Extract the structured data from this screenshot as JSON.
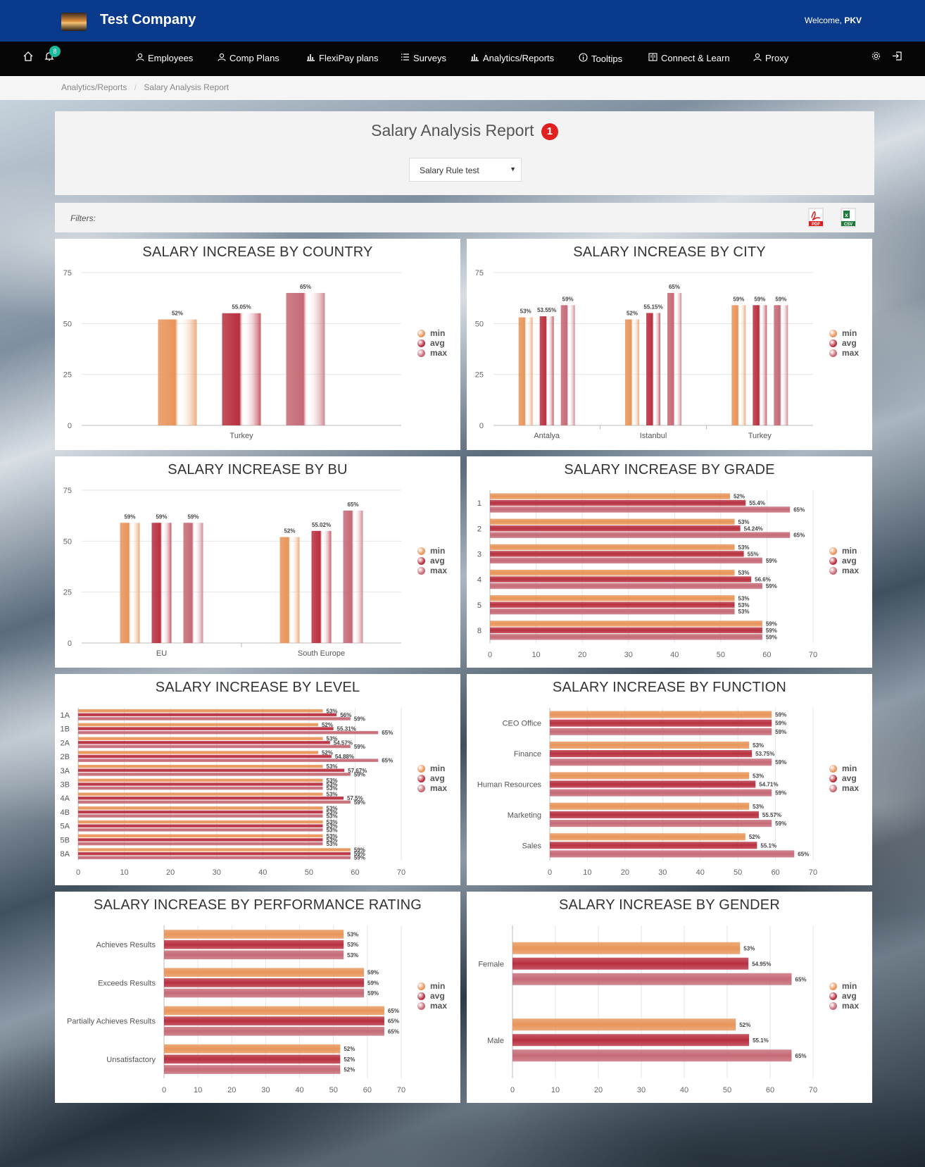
{
  "header": {
    "company": "Test Company",
    "welcome_prefix": "Welcome, ",
    "welcome_user": "PKV"
  },
  "nav": {
    "notifications_count": "8",
    "items": [
      {
        "label": "Employees",
        "icon": "person-icon"
      },
      {
        "label": "Comp Plans",
        "icon": "person-icon"
      },
      {
        "label": "FlexiPay plans",
        "icon": "bar-chart-icon"
      },
      {
        "label": "Surveys",
        "icon": "list-icon"
      },
      {
        "label": "Analytics/Reports",
        "icon": "bar-chart-icon"
      },
      {
        "label": "Tooltips",
        "icon": "info-icon"
      },
      {
        "label": "Connect & Learn",
        "icon": "book-icon"
      },
      {
        "label": "Proxy",
        "icon": "person-icon"
      }
    ]
  },
  "breadcrumb": {
    "items": [
      "Analytics/Reports",
      "Salary Analysis Report"
    ],
    "separator": "/"
  },
  "report": {
    "title": "Salary Analysis Report",
    "badge": "1",
    "selected_rule": "Salary Rule test",
    "filters_label": "Filters:",
    "pdf_label": "PDF",
    "csv_label": "CSV"
  },
  "colors": {
    "min": "#e8955a",
    "avg": "#b83040",
    "max": "#c56a76",
    "topbar": "#0a3a8c",
    "navbar": "#050505"
  },
  "legend": [
    "min",
    "avg",
    "max"
  ],
  "chart_data": [
    {
      "id": "country",
      "type": "bar",
      "title": "SALARY INCREASE BY COUNTRY",
      "orientation": "vertical",
      "categories": [
        "Turkey"
      ],
      "ylim": [
        0,
        75
      ],
      "yticks": [
        0,
        25,
        50,
        75
      ],
      "series": [
        {
          "name": "min",
          "values": [
            52
          ],
          "labels": [
            "52%"
          ]
        },
        {
          "name": "avg",
          "values": [
            55.05
          ],
          "labels": [
            "55.05%"
          ]
        },
        {
          "name": "max",
          "values": [
            65
          ],
          "labels": [
            "65%"
          ]
        }
      ]
    },
    {
      "id": "city",
      "type": "bar",
      "title": "SALARY INCREASE BY CITY",
      "orientation": "vertical",
      "categories": [
        "Antalya",
        "Istanbul",
        "Turkey"
      ],
      "ylim": [
        0,
        75
      ],
      "yticks": [
        0,
        25,
        50,
        75
      ],
      "series": [
        {
          "name": "min",
          "values": [
            53,
            52,
            59
          ],
          "labels": [
            "53%",
            "52%",
            "59%"
          ]
        },
        {
          "name": "avg",
          "values": [
            53.55,
            55.15,
            59
          ],
          "labels": [
            "53.55%",
            "55.15%",
            "59%"
          ]
        },
        {
          "name": "max",
          "values": [
            59,
            65,
            59
          ],
          "labels": [
            "59%",
            "65%",
            "59%"
          ]
        }
      ]
    },
    {
      "id": "bu",
      "type": "bar",
      "title": "SALARY INCREASE BY BU",
      "orientation": "vertical",
      "categories": [
        "EU",
        "South Europe"
      ],
      "ylim": [
        0,
        75
      ],
      "yticks": [
        0,
        25,
        50,
        75
      ],
      "series": [
        {
          "name": "min",
          "values": [
            59,
            52
          ],
          "labels": [
            "59%",
            "52%"
          ]
        },
        {
          "name": "avg",
          "values": [
            59,
            55.02
          ],
          "labels": [
            "59%",
            "55.02%"
          ]
        },
        {
          "name": "max",
          "values": [
            59,
            65
          ],
          "labels": [
            "59%",
            "65%"
          ]
        }
      ]
    },
    {
      "id": "grade",
      "type": "bar",
      "title": "SALARY INCREASE BY GRADE",
      "orientation": "horizontal",
      "categories": [
        "1",
        "2",
        "3",
        "4",
        "5",
        "8"
      ],
      "xlim": [
        0,
        70
      ],
      "xticks": [
        0,
        10,
        20,
        30,
        40,
        50,
        60,
        70
      ],
      "series": [
        {
          "name": "min",
          "values": [
            52,
            53,
            53,
            53,
            53,
            59
          ],
          "labels": [
            "52%",
            "53%",
            "53%",
            "53%",
            "53%",
            "59%"
          ]
        },
        {
          "name": "avg",
          "values": [
            55.4,
            54.24,
            55,
            56.6,
            53,
            59
          ],
          "labels": [
            "55.4%",
            "54.24%",
            "55%",
            "56.6%",
            "53%",
            "59%"
          ]
        },
        {
          "name": "max",
          "values": [
            65,
            65,
            59,
            59,
            53,
            59
          ],
          "labels": [
            "65%",
            "65%",
            "59%",
            "59%",
            "53%",
            "59%"
          ]
        }
      ]
    },
    {
      "id": "level",
      "type": "bar",
      "title": "SALARY INCREASE BY LEVEL",
      "orientation": "horizontal",
      "categories": [
        "1A",
        "1B",
        "2A",
        "2B",
        "3A",
        "3B",
        "4A",
        "4B",
        "5A",
        "5B",
        "8A"
      ],
      "xlim": [
        0,
        70
      ],
      "xticks": [
        0,
        10,
        20,
        30,
        40,
        50,
        60,
        70
      ],
      "series": [
        {
          "name": "min",
          "values": [
            53,
            52,
            53,
            52,
            53,
            53,
            53,
            53,
            53,
            53,
            59
          ],
          "labels": [
            "53%",
            "52%",
            "53%",
            "52%",
            "53%",
            "53%",
            "53%",
            "53%",
            "53%",
            "53%",
            "59%"
          ]
        },
        {
          "name": "avg",
          "values": [
            56,
            55.31,
            54.57,
            54.88,
            57.67,
            53,
            57.5,
            53,
            53,
            53,
            59
          ],
          "labels": [
            "56%",
            "55.31%",
            "54.57%",
            "54.88%",
            "57.67%",
            "53%",
            "57.5%",
            "53%",
            "53%",
            "53%",
            "59%"
          ]
        },
        {
          "name": "max",
          "values": [
            59,
            65,
            59,
            65,
            59,
            53,
            59,
            53,
            53,
            53,
            59
          ],
          "labels": [
            "59%",
            "65%",
            "59%",
            "65%",
            "59%",
            "53%",
            "59%",
            "53%",
            "53%",
            "53%",
            "59%"
          ]
        }
      ]
    },
    {
      "id": "function",
      "type": "bar",
      "title": "SALARY INCREASE BY FUNCTION",
      "orientation": "horizontal",
      "categories": [
        "CEO Office",
        "Finance",
        "Human Resources",
        "Marketing",
        "Sales"
      ],
      "xlim": [
        0,
        70
      ],
      "xticks": [
        0,
        10,
        20,
        30,
        40,
        50,
        60,
        70
      ],
      "series": [
        {
          "name": "min",
          "values": [
            59,
            53,
            53,
            53,
            52
          ],
          "labels": [
            "59%",
            "53%",
            "53%",
            "53%",
            "52%"
          ]
        },
        {
          "name": "avg",
          "values": [
            59,
            53.75,
            54.71,
            55.57,
            55.1
          ],
          "labels": [
            "59%",
            "53.75%",
            "54.71%",
            "55.57%",
            "55.1%"
          ]
        },
        {
          "name": "max",
          "values": [
            59,
            59,
            59,
            59,
            65
          ],
          "labels": [
            "59%",
            "59%",
            "59%",
            "59%",
            "65%"
          ]
        }
      ]
    },
    {
      "id": "performance",
      "type": "bar",
      "title": "SALARY INCREASE BY PERFORMANCE RATING",
      "orientation": "horizontal",
      "categories": [
        "Achieves Results",
        "Exceeds Results",
        "Partially Achieves Results",
        "Unsatisfactory"
      ],
      "xlim": [
        0,
        70
      ],
      "xticks": [
        0,
        10,
        20,
        30,
        40,
        50,
        60,
        70
      ],
      "series": [
        {
          "name": "min",
          "values": [
            53,
            59,
            65,
            52
          ],
          "labels": [
            "53%",
            "59%",
            "65%",
            "52%"
          ]
        },
        {
          "name": "avg",
          "values": [
            53,
            59,
            65,
            52
          ],
          "labels": [
            "53%",
            "59%",
            "65%",
            "52%"
          ]
        },
        {
          "name": "max",
          "values": [
            53,
            59,
            65,
            52
          ],
          "labels": [
            "53%",
            "59%",
            "65%",
            "52%"
          ]
        }
      ]
    },
    {
      "id": "gender",
      "type": "bar",
      "title": "SALARY INCREASE BY GENDER",
      "orientation": "horizontal",
      "categories": [
        "Female",
        "Male"
      ],
      "xlim": [
        0,
        70
      ],
      "xticks": [
        0,
        10,
        20,
        30,
        40,
        50,
        60,
        70
      ],
      "series": [
        {
          "name": "min",
          "values": [
            53,
            52
          ],
          "labels": [
            "53%",
            "52%"
          ]
        },
        {
          "name": "avg",
          "values": [
            54.95,
            55.1
          ],
          "labels": [
            "54.95%",
            "55.1%"
          ]
        },
        {
          "name": "max",
          "values": [
            65,
            65
          ],
          "labels": [
            "65%",
            "65%"
          ]
        }
      ]
    }
  ]
}
